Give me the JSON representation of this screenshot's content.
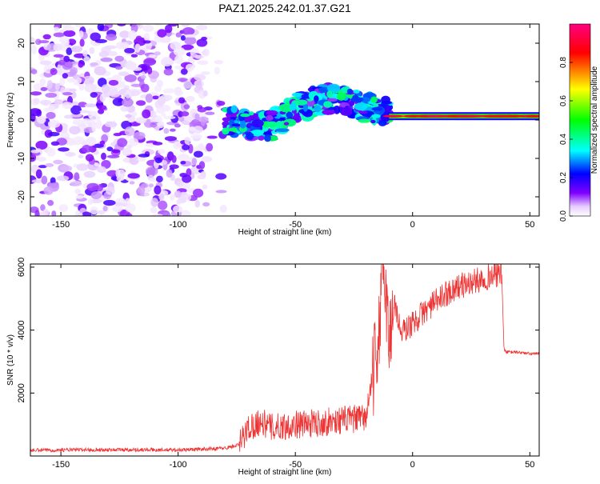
{
  "title": "PAZ1.2025.242.01.37.G21",
  "chart_data": [
    {
      "type": "heatmap",
      "xlabel": "Height of straight line (km)",
      "ylabel": "Frequency (Hz)",
      "xlim": [
        -163,
        54
      ],
      "ylim": [
        -25,
        25
      ],
      "xticks": [
        -150,
        -100,
        -50,
        0,
        50
      ],
      "yticks": [
        -20,
        -10,
        0,
        10,
        20
      ],
      "colorbar": {
        "label": "Normalized spectral amplitude",
        "range": [
          0,
          1
        ],
        "ticks": [
          0.0,
          0.2,
          0.4,
          0.6,
          0.8
        ],
        "colors": [
          "#ffffff",
          "#e6ccff",
          "#8000ff",
          "#0000ff",
          "#00ffff",
          "#00ff00",
          "#ffff00",
          "#ff0000",
          "#ff0080"
        ]
      },
      "regions": [
        {
          "x": [
            -163,
            -80
          ],
          "freq_range": [
            -25,
            25
          ],
          "amplitude_range": [
            0.02,
            0.18
          ],
          "note_level": "scattered"
        },
        {
          "x": [
            -80,
            -10
          ],
          "freq_range": [
            -5,
            9
          ],
          "amplitude_range": [
            0.2,
            0.45
          ],
          "note_level": "band"
        },
        {
          "x": [
            -10,
            54
          ],
          "freq_range": [
            0,
            2
          ],
          "amplitude_range": [
            0.5,
            1.0
          ],
          "note_level": "narrow"
        }
      ],
      "ridge": {
        "x": [
          -90,
          -80,
          -70,
          -60,
          -50,
          -40,
          -30,
          -20,
          -10,
          0,
          10,
          20,
          30,
          40,
          54
        ],
        "freq": [
          1,
          0,
          -1.5,
          -1.5,
          3,
          5,
          6,
          3,
          2,
          1,
          1.5,
          1,
          1,
          1,
          1
        ]
      }
    },
    {
      "type": "line",
      "xlabel": "Height of straight line (km)",
      "ylabel": "SNR (10 * v/v)",
      "xlim": [
        -163,
        54
      ],
      "ylim": [
        0,
        6100
      ],
      "xticks": [
        -150,
        -100,
        -50,
        0,
        50
      ],
      "yticks": [
        2000,
        4000,
        6000
      ],
      "color": "#ee3333",
      "series": [
        {
          "x": [
            -163,
            -140,
            -120,
            -100,
            -80,
            -74,
            -70,
            -65,
            -60,
            -50,
            -40,
            -30,
            -20,
            -17,
            -15,
            -12,
            -10,
            -8,
            -5,
            0,
            5,
            10,
            15,
            20,
            25,
            30,
            35,
            38,
            39,
            40,
            45,
            50,
            54
          ],
          "y": [
            180,
            200,
            200,
            190,
            250,
            350,
            900,
            1100,
            900,
            1000,
            1050,
            1150,
            1200,
            2500,
            3500,
            6000,
            3500,
            5000,
            3900,
            4200,
            4600,
            4900,
            5200,
            5400,
            5500,
            5650,
            5750,
            5800,
            3400,
            3300,
            3300,
            3250,
            3250
          ]
        }
      ]
    }
  ]
}
